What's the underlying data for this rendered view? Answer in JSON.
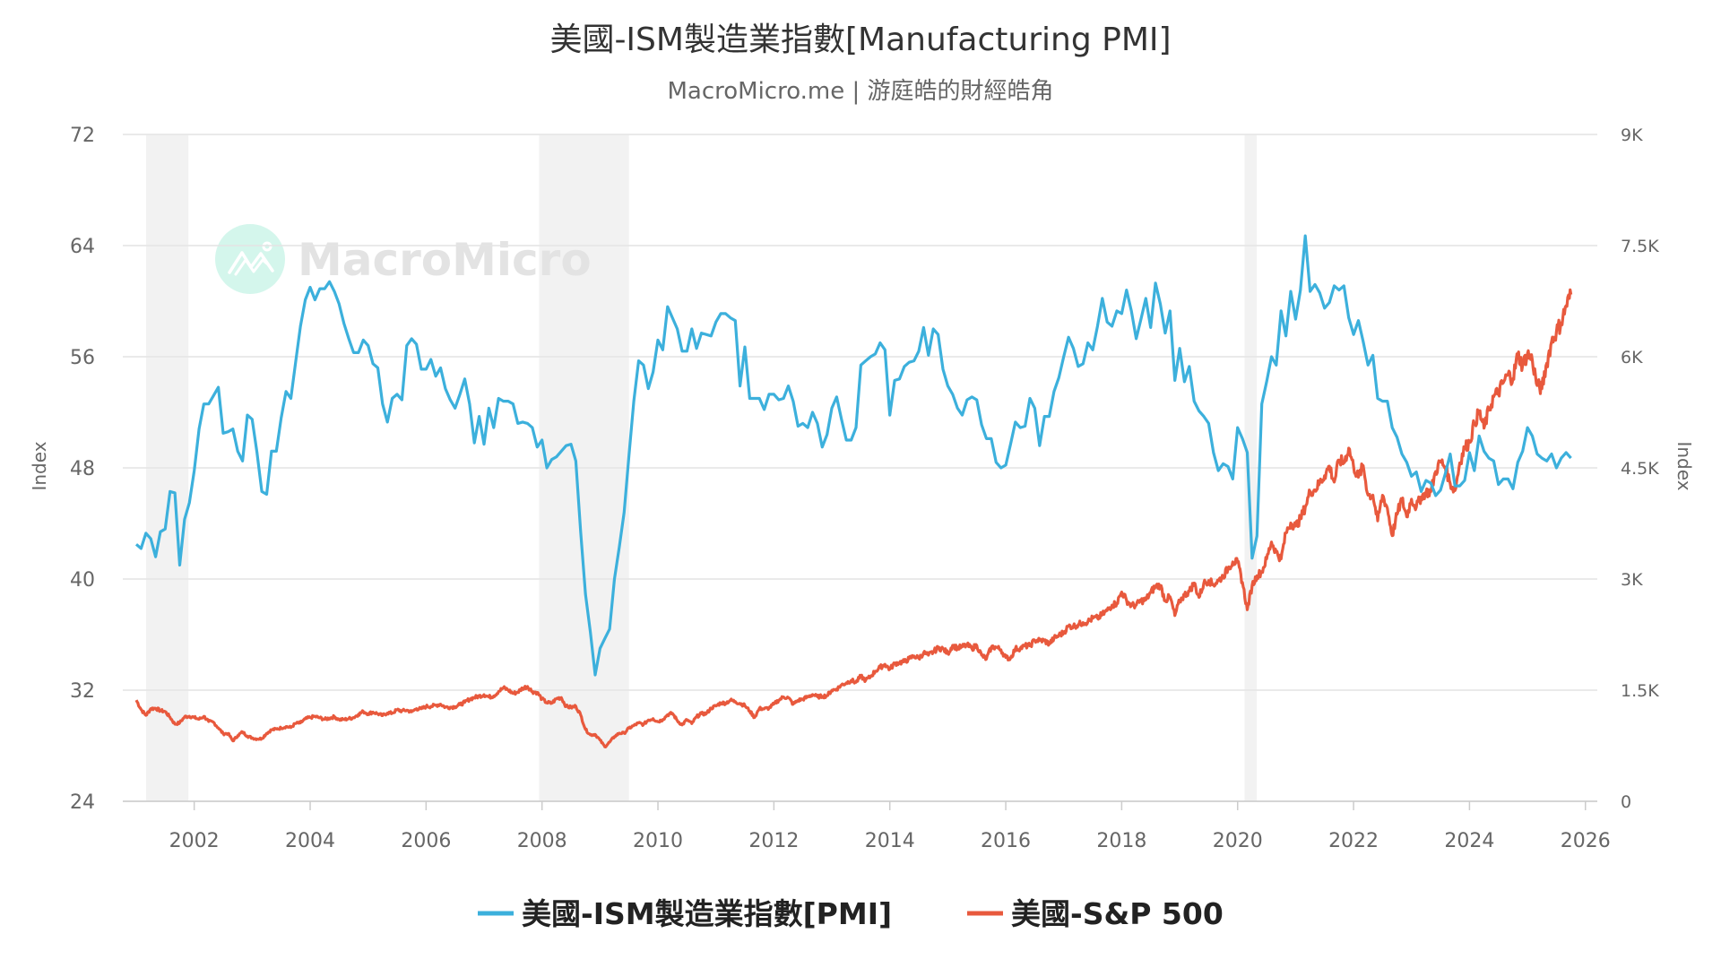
{
  "chart_data": {
    "type": "line",
    "title": "美國-ISM製造業指數[Manufacturing PMI]",
    "subtitle": "MacroMicro.me | 游庭皓的財經皓角",
    "watermark": "MacroMicro",
    "x_ticks": [
      "2002",
      "2004",
      "2006",
      "2008",
      "2010",
      "2012",
      "2014",
      "2016",
      "2018",
      "2020",
      "2022",
      "2024",
      "2026"
    ],
    "x_range": [
      2000.9,
      2026.1
    ],
    "y_left": {
      "label": "Index",
      "ticks": [
        "72",
        "64",
        "56",
        "48",
        "40",
        "32",
        "24"
      ],
      "range": [
        24,
        72
      ]
    },
    "y_right": {
      "label": "Index",
      "ticks": [
        "9K",
        "7.5K",
        "6K",
        "4.5K",
        "3K",
        "1.5K",
        "0"
      ],
      "range": [
        0,
        9000
      ]
    },
    "recessions": [
      [
        2001.17,
        2001.9
      ],
      [
        2007.95,
        2009.5
      ],
      [
        2020.12,
        2020.33
      ]
    ],
    "legend_position": "bottom",
    "series": [
      {
        "name": "美國-ISM製造業指數[PMI]",
        "axis": "left",
        "color": "#3cb0dc",
        "start": "2001-01",
        "frequency": "monthly",
        "values": [
          42.5,
          42.2,
          43.3,
          42.9,
          41.6,
          43.4,
          43.6,
          46.3,
          46.2,
          41.0,
          44.3,
          45.5,
          47.8,
          50.8,
          52.6,
          52.6,
          53.2,
          53.8,
          50.5,
          50.6,
          50.8,
          49.2,
          48.5,
          51.8,
          51.5,
          49.1,
          46.3,
          46.1,
          49.2,
          49.2,
          51.6,
          53.5,
          53.0,
          55.6,
          58.2,
          60.1,
          61.0,
          60.1,
          60.9,
          60.9,
          61.4,
          60.7,
          59.8,
          58.4,
          57.3,
          56.3,
          56.3,
          57.2,
          56.8,
          55.5,
          55.2,
          52.6,
          51.3,
          53.0,
          53.3,
          52.9,
          56.8,
          57.3,
          56.9,
          55.1,
          55.1,
          55.8,
          54.6,
          55.2,
          53.7,
          52.9,
          52.3,
          53.3,
          54.4,
          52.6,
          49.8,
          51.7,
          49.7,
          52.3,
          50.9,
          53.0,
          52.8,
          52.8,
          52.6,
          51.2,
          51.3,
          51.2,
          50.9,
          49.5,
          50.0,
          48.0,
          48.6,
          48.8,
          49.2,
          49.6,
          49.7,
          48.5,
          43.4,
          38.9,
          36.2,
          33.1,
          35.0,
          35.7,
          36.4,
          40.0,
          42.3,
          44.8,
          48.9,
          52.8,
          55.7,
          55.4,
          53.7,
          54.9,
          57.2,
          56.5,
          59.6,
          58.8,
          58.0,
          56.4,
          56.4,
          58.0,
          56.6,
          57.7,
          57.6,
          57.5,
          58.5,
          59.1,
          59.1,
          58.8,
          58.6,
          53.9,
          56.7,
          53.0,
          53.0,
          53.0,
          52.2,
          53.3,
          53.3,
          52.9,
          53.0,
          53.9,
          52.8,
          51.0,
          51.2,
          50.9,
          52.0,
          51.2,
          49.5,
          50.4,
          52.3,
          53.1,
          51.5,
          50.0,
          50.0,
          50.9,
          55.4,
          55.7,
          56.0,
          56.2,
          57.0,
          56.5,
          51.8,
          54.3,
          54.4,
          55.3,
          55.6,
          55.7,
          56.4,
          58.1,
          56.1,
          58.0,
          57.6,
          55.1,
          53.9,
          53.3,
          52.3,
          51.8,
          52.9,
          53.1,
          52.9,
          51.1,
          50.1,
          50.1,
          48.4,
          48.0,
          48.2,
          49.7,
          51.3,
          50.9,
          51.0,
          53.0,
          52.3,
          49.6,
          51.7,
          51.7,
          53.5,
          54.5,
          56.0,
          57.4,
          56.6,
          55.3,
          55.5,
          57.0,
          56.5,
          58.2,
          60.2,
          58.5,
          58.2,
          59.3,
          59.1,
          60.8,
          59.3,
          57.3,
          58.7,
          60.2,
          58.1,
          61.3,
          59.8,
          57.7,
          59.3,
          54.3,
          56.6,
          54.2,
          55.3,
          52.8,
          52.1,
          51.7,
          51.2,
          49.1,
          47.8,
          48.3,
          48.1,
          47.2,
          50.9,
          50.1,
          49.1,
          41.5,
          43.1,
          52.6,
          54.2,
          56.0,
          55.4,
          59.3,
          57.5,
          60.7,
          58.7,
          60.8,
          64.7,
          60.7,
          61.2,
          60.6,
          59.5,
          59.9,
          61.1,
          60.8,
          61.1,
          58.8,
          57.6,
          58.6,
          57.1,
          55.4,
          56.1,
          53.0,
          52.8,
          52.8,
          50.9,
          50.2,
          49.0,
          48.4,
          47.4,
          47.7,
          46.3,
          47.1,
          46.9,
          46.0,
          46.4,
          47.6,
          49.0,
          46.7,
          46.7,
          47.1,
          49.1,
          47.8,
          50.3,
          49.2,
          48.7,
          48.5,
          46.8,
          47.2,
          47.2,
          46.5,
          48.4,
          49.2,
          50.9,
          50.3,
          49.0,
          48.7,
          48.5,
          49.0,
          48.0,
          48.7,
          49.1,
          48.7
        ]
      },
      {
        "name": "美國-S&P 500",
        "axis": "right",
        "color": "#e8593d",
        "start": "2001-01",
        "frequency": "monthly",
        "values": [
          1366,
          1240,
          1160,
          1249,
          1256,
          1224,
          1211,
          1134,
          1041,
          1060,
          1139,
          1148,
          1130,
          1107,
          1147,
          1077,
          1067,
          990,
          912,
          916,
          815,
          886,
          936,
          880,
          856,
          841,
          848,
          917,
          964,
          975,
          990,
          1008,
          996,
          1051,
          1058,
          1112,
          1131,
          1145,
          1126,
          1107,
          1121,
          1141,
          1102,
          1104,
          1115,
          1130,
          1174,
          1212,
          1181,
          1204,
          1181,
          1157,
          1192,
          1191,
          1234,
          1220,
          1229,
          1207,
          1249,
          1248,
          1280,
          1281,
          1295,
          1311,
          1270,
          1270,
          1277,
          1304,
          1336,
          1378,
          1401,
          1418,
          1438,
          1407,
          1421,
          1482,
          1531,
          1503,
          1455,
          1474,
          1527,
          1549,
          1481,
          1468,
          1379,
          1331,
          1323,
          1386,
          1400,
          1280,
          1267,
          1283,
          1166,
          969,
          896,
          903,
          826,
          735,
          798,
          873,
          919,
          919,
          987,
          1021,
          1057,
          1036,
          1096,
          1115,
          1074,
          1104,
          1169,
          1187,
          1089,
          1031,
          1102,
          1049,
          1141,
          1183,
          1181,
          1258,
          1286,
          1327,
          1326,
          1364,
          1345,
          1321,
          1292,
          1219,
          1131,
          1253,
          1247,
          1258,
          1312,
          1366,
          1408,
          1398,
          1310,
          1362,
          1379,
          1407,
          1441,
          1412,
          1416,
          1426,
          1498,
          1515,
          1569,
          1598,
          1631,
          1606,
          1686,
          1633,
          1682,
          1757,
          1806,
          1848,
          1783,
          1859,
          1872,
          1884,
          1924,
          1960,
          1931,
          2003,
          1972,
          2018,
          2068,
          2059,
          1995,
          2105,
          2068,
          2086,
          2107,
          2063,
          2104,
          1972,
          1920,
          2079,
          2080,
          2044,
          1940,
          1932,
          2060,
          2065,
          2097,
          2099,
          2174,
          2171,
          2168,
          2126,
          2199,
          2239,
          2279,
          2364,
          2363,
          2384,
          2412,
          2423,
          2470,
          2472,
          2519,
          2575,
          2648,
          2674,
          2824,
          2714,
          2641,
          2648,
          2705,
          2718,
          2816,
          2902,
          2914,
          2712,
          2760,
          2507,
          2704,
          2784,
          2834,
          2946,
          2752,
          2942,
          2980,
          2926,
          2977,
          3038,
          3141,
          3231,
          3226,
          2954,
          2585,
          2912,
          3044,
          3100,
          3271,
          3500,
          3363,
          3270,
          3622,
          3756,
          3714,
          3811,
          3973,
          4181,
          4204,
          4298,
          4395,
          4523,
          4308,
          4605,
          4567,
          4766,
          4516,
          4374,
          4530,
          4132,
          4132,
          3785,
          4130,
          3955,
          3586,
          3872,
          4080,
          3840,
          4077,
          3970,
          4109,
          4169,
          4180,
          4450,
          4589,
          4508,
          4288,
          4194,
          4568,
          4770,
          4846,
          5096,
          5254,
          5036,
          5278,
          5460,
          5522,
          5648,
          5762,
          5705,
          6032,
          5882,
          6041,
          5955,
          5612,
          5569,
          5912,
          6205,
          6339,
          6460,
          6688,
          6840
        ]
      }
    ]
  }
}
